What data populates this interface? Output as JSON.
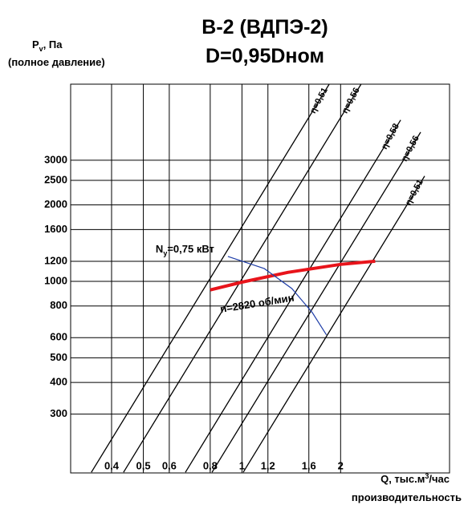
{
  "chart_data": {
    "type": "line",
    "title": [
      "B-2 (ВДПЭ-2)",
      "D=0,95Dном"
    ],
    "y_label": {
      "main": "P",
      "sub": "v",
      "rest": ", Па",
      "note": "(полное давление)"
    },
    "x_label": {
      "main": "Q, тыс.м",
      "sup": "3",
      "rest": "/час",
      "note": "производительность"
    },
    "log_x": true,
    "log_y": true,
    "grid": true,
    "xlim": [
      0.3,
      4.3
    ],
    "ylim": [
      176,
      5980
    ],
    "xticks": [
      {
        "value": 0.4,
        "label": "0,4"
      },
      {
        "value": 0.5,
        "label": "0,5"
      },
      {
        "value": 0.6,
        "label": "0,6"
      },
      {
        "value": 0.8,
        "label": "0,8"
      },
      1,
      {
        "value": 1.2,
        "label": "1,2"
      },
      {
        "value": 1.6,
        "label": "1,6"
      },
      2
    ],
    "yticks": [
      300,
      400,
      500,
      600,
      800,
      1000,
      1200,
      1600,
      2000,
      2500,
      3000
    ],
    "series": [
      {
        "name": "η=0,51",
        "color": "#000000",
        "x": [
          0.347,
          1.846
        ],
        "values": [
          177,
          5980
        ]
      },
      {
        "name": "η=0,56",
        "color": "#000000",
        "x": [
          0.435,
          2.31
        ],
        "values": [
          177,
          5980
        ]
      },
      {
        "name": "η=0,58",
        "color": "#000000",
        "x": [
          0.672,
          3.05
        ],
        "values": [
          177,
          4320
        ]
      },
      {
        "name": "η=0,56",
        "color": "#000000",
        "x": [
          0.81,
          3.51
        ],
        "values": [
          177,
          3870
        ]
      },
      {
        "name": "η=0,51",
        "color": "#000000",
        "x": [
          1.009,
          3.61
        ],
        "values": [
          177,
          2600
        ]
      },
      {
        "name": "n=2820 об/мин",
        "color": "#e8141b",
        "x": [
          0.8,
          1.0,
          1.38,
          2.0,
          2.55
        ],
        "values": [
          925,
          993,
          1085,
          1167,
          1200
        ]
      },
      {
        "name": {
          "main": "N",
          "sub": "у",
          "rest": "=0,75 кВт"
        },
        "color": "#1f3ea8",
        "x": [
          0.906,
          1.17,
          1.42,
          1.64,
          1.81
        ],
        "values": [
          1254,
          1123,
          937,
          753,
          616
        ]
      }
    ]
  }
}
